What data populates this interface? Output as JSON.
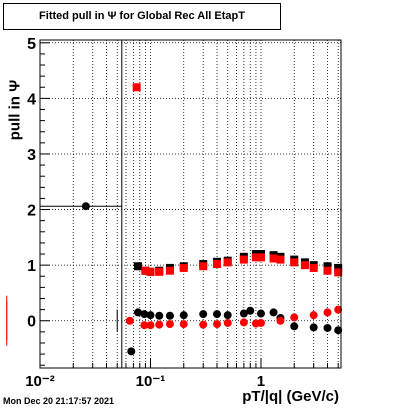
{
  "title": "Fitted pull in  Ψ  for Global Rec All EtapT",
  "timestamp": "Mon Dec 20 21:17:57 2021",
  "chart_data": {
    "type": "scatter",
    "title": "Fitted pull in  Ψ  for Global Rec All EtapT",
    "xlabel": "pT/|q| (GeV/c)",
    "ylabel": "pull in  Ψ",
    "x_scale": "log",
    "xlim": [
      0.01,
      5.3
    ],
    "ylim": [
      -0.85,
      5.05
    ],
    "y_ticks": [
      0,
      1,
      2,
      3,
      4,
      5
    ],
    "x_tick_labels": [
      "10⁻²",
      "10⁻¹",
      "1"
    ],
    "grid": true,
    "series": [
      {
        "color": "#000000",
        "marker": "circle",
        "points": [
          [
            0.026,
            2.06
          ],
          [
            0.067,
            -0.55
          ],
          [
            0.077,
            0.15
          ],
          [
            0.088,
            0.12
          ],
          [
            0.1,
            0.1
          ],
          [
            0.12,
            0.09
          ],
          [
            0.15,
            0.09
          ],
          [
            0.2,
            0.1
          ],
          [
            0.3,
            0.12
          ],
          [
            0.4,
            0.12
          ],
          [
            0.5,
            0.1
          ],
          [
            0.7,
            0.13
          ],
          [
            0.8,
            0.18
          ],
          [
            1.0,
            0.13
          ],
          [
            1.3,
            0.15
          ],
          [
            1.5,
            0.05
          ],
          [
            2.0,
            -0.1
          ],
          [
            3.0,
            -0.12
          ],
          [
            4.0,
            -0.13
          ],
          [
            5.0,
            -0.17
          ]
        ],
        "errors": [
          [
            0.055,
            15
          ],
          [
            0.05,
            0.2
          ],
          [
            0.01,
            0.02
          ]
        ]
      },
      {
        "color": "#ff0000",
        "marker": "circle",
        "points": [
          [
            0.065,
            0.0
          ],
          [
            0.088,
            -0.08
          ],
          [
            0.1,
            -0.08
          ],
          [
            0.12,
            -0.07
          ],
          [
            0.15,
            -0.06
          ],
          [
            0.2,
            -0.06
          ],
          [
            0.3,
            -0.07
          ],
          [
            0.4,
            -0.06
          ],
          [
            0.5,
            -0.04
          ],
          [
            0.7,
            -0.03
          ],
          [
            0.9,
            -0.05
          ],
          [
            1.0,
            -0.04
          ],
          [
            1.5,
            0.0
          ],
          [
            2.0,
            0.06
          ],
          [
            3.0,
            0.1
          ],
          [
            4.0,
            0.15
          ],
          [
            5.0,
            0.2
          ]
        ],
        "errors": [
          [
            0.005,
            0.35
          ]
        ]
      },
      {
        "color": "#000000",
        "marker": "square",
        "points": [
          [
            0.077,
            0.98
          ],
          [
            0.09,
            0.9
          ],
          [
            0.1,
            0.88
          ],
          [
            0.12,
            0.9
          ],
          [
            0.15,
            0.95
          ],
          [
            0.2,
            0.98
          ],
          [
            0.3,
            1.02
          ],
          [
            0.4,
            1.06
          ],
          [
            0.5,
            1.08
          ],
          [
            0.7,
            1.15
          ],
          [
            0.9,
            1.2
          ],
          [
            1.0,
            1.2
          ],
          [
            1.3,
            1.18
          ],
          [
            1.5,
            1.15
          ],
          [
            2.0,
            1.1
          ],
          [
            2.5,
            1.05
          ],
          [
            3.0,
            1.0
          ],
          [
            4.0,
            0.98
          ],
          [
            5.0,
            0.95
          ]
        ]
      },
      {
        "color": "#ff0000",
        "marker": "square",
        "points": [
          [
            0.075,
            4.2
          ],
          [
            0.09,
            0.9
          ],
          [
            0.1,
            0.88
          ],
          [
            0.12,
            0.88
          ],
          [
            0.15,
            0.9
          ],
          [
            0.2,
            0.95
          ],
          [
            0.3,
            0.98
          ],
          [
            0.4,
            1.02
          ],
          [
            0.5,
            1.05
          ],
          [
            0.7,
            1.1
          ],
          [
            0.9,
            1.14
          ],
          [
            1.0,
            1.14
          ],
          [
            1.3,
            1.12
          ],
          [
            1.5,
            1.1
          ],
          [
            2.0,
            1.05
          ],
          [
            2.5,
            1.0
          ],
          [
            3.0,
            0.95
          ],
          [
            4.0,
            0.9
          ],
          [
            5.0,
            0.87
          ]
        ],
        "errors": [
          [
            0.005,
            0.45
          ]
        ]
      }
    ]
  }
}
